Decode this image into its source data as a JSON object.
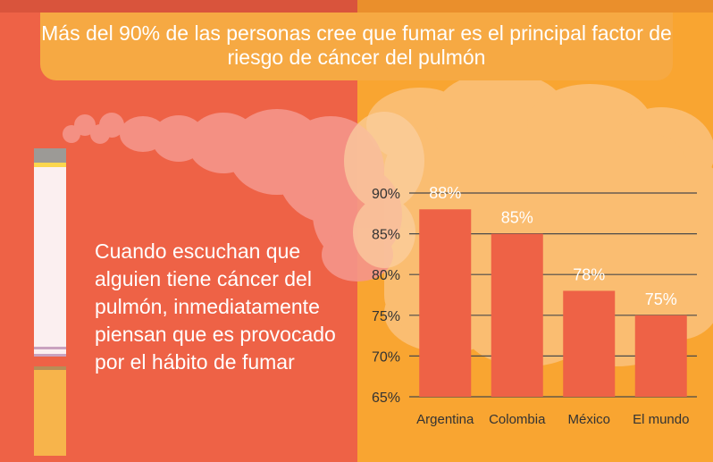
{
  "headline": "Más del 90% de las personas cree que fumar es el principal factor de riesgo de cáncer del pulmón",
  "body_text": "Cuando escuchan que alguien tiene cáncer del pulmón, inmediatamente piensan que es provocado por el hábito de fumar",
  "colors": {
    "left_background": "#ee6246",
    "right_background": "#f9a531",
    "bar": "#ee6246",
    "text": "#ffffff",
    "axis_text": "#333333"
  },
  "chart_data": {
    "type": "bar",
    "categories": [
      "Argentina",
      "Colombia",
      "México",
      "El mundo"
    ],
    "values": [
      88,
      85,
      78,
      75
    ],
    "value_labels": [
      "88%",
      "85%",
      "78%",
      "75%"
    ],
    "y_ticks": [
      "90%",
      "85%",
      "80%",
      "75%",
      "70%",
      "65%"
    ],
    "ylim": [
      65,
      90
    ],
    "grid": true,
    "title": "",
    "xlabel": "",
    "ylabel": ""
  }
}
